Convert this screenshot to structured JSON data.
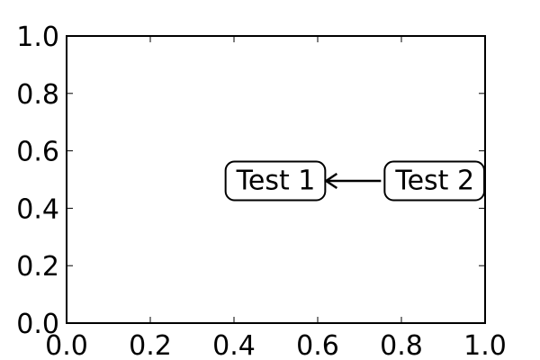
{
  "chart_data": {
    "type": "scatter",
    "title": "",
    "xlabel": "",
    "ylabel": "",
    "xlim": [
      0,
      1
    ],
    "ylim": [
      0,
      1
    ],
    "x_ticks": [
      "0.0",
      "0.2",
      "0.4",
      "0.6",
      "0.8",
      "1.0"
    ],
    "y_ticks": [
      "0.0",
      "0.2",
      "0.4",
      "0.6",
      "0.8",
      "1.0"
    ],
    "grid": false,
    "series": [],
    "annotations": [
      {
        "text": "Test 1",
        "x": 0.5,
        "y": 0.5,
        "boxstyle": "round"
      },
      {
        "text": "Test 2",
        "x": 0.88,
        "y": 0.5,
        "boxstyle": "round",
        "arrow_to": "Test 1"
      }
    ],
    "colors": {
      "axes": "#000000",
      "background": "#ffffff",
      "text": "#000000"
    }
  }
}
